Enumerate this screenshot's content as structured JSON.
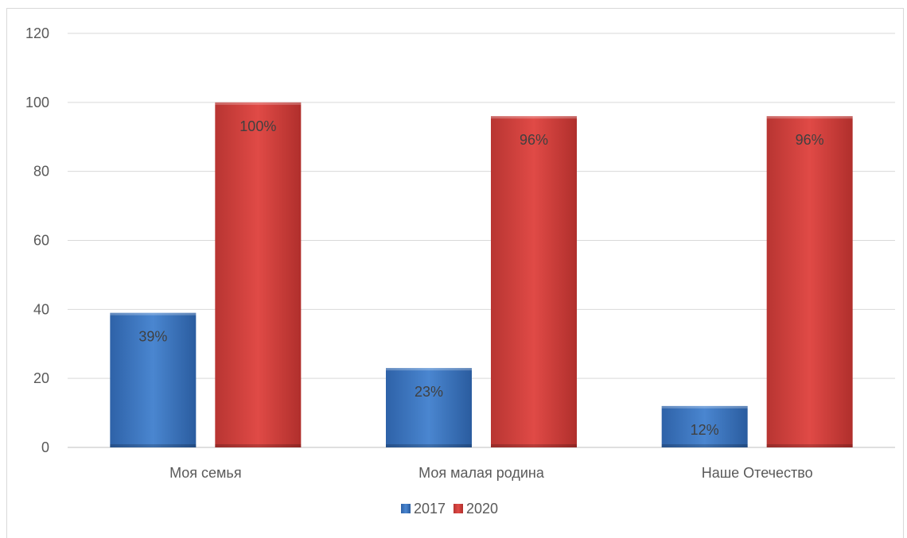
{
  "chart_data": {
    "type": "bar",
    "categories": [
      "Моя семья",
      "Моя малая родина",
      "Наше Отечество"
    ],
    "series": [
      {
        "name": "2017",
        "values": [
          39,
          23,
          12
        ],
        "labels": [
          "39%",
          "23%",
          "12%"
        ],
        "color": "#3a75c4"
      },
      {
        "name": "2020",
        "values": [
          100,
          96,
          96
        ],
        "labels": [
          "100%",
          "96%",
          "96%"
        ],
        "color": "#d8403d"
      }
    ],
    "yticks": [
      "0",
      "20",
      "40",
      "60",
      "80",
      "100",
      "120"
    ],
    "ylim": [
      0,
      120
    ],
    "grid": true,
    "legend_position": "bottom",
    "title": "",
    "xlabel": "",
    "ylabel": ""
  }
}
